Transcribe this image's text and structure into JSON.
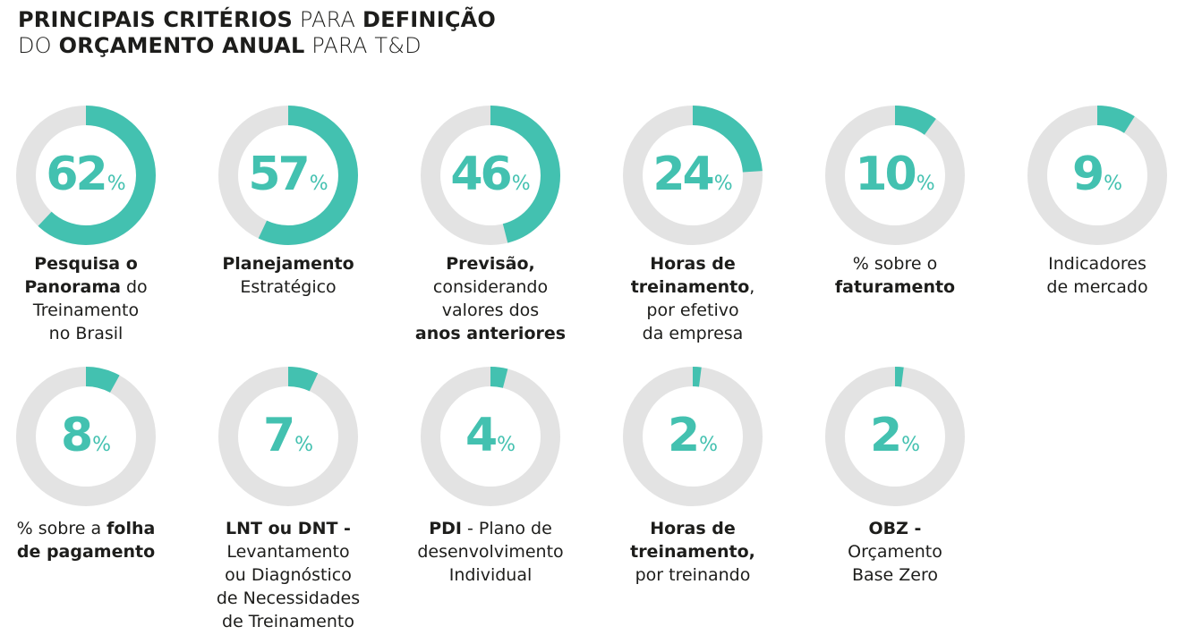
{
  "title": {
    "line1": [
      {
        "text": "PRINCIPAIS CRITÉRIOS",
        "bold": true
      },
      {
        "text": " PARA ",
        "bold": false
      },
      {
        "text": "DEFINIÇÃO",
        "bold": true
      }
    ],
    "line2": [
      {
        "text": "DO ",
        "bold": false
      },
      {
        "text": "ORÇAMENTO ANUAL",
        "bold": true
      },
      {
        "text": " PARA T&D",
        "bold": false
      }
    ]
  },
  "colors": {
    "accent": "#43c1b0",
    "track": "#e3e3e3",
    "text": "#1d1d1b"
  },
  "chart_data": {
    "type": "donut",
    "unit": "%",
    "items": [
      {
        "value": 62,
        "label": [
          [
            {
              "t": "Pesquisa o",
              "b": true
            }
          ],
          [
            {
              "t": "Panorama",
              "b": true
            },
            {
              "t": " do",
              "b": false
            }
          ],
          [
            {
              "t": "Treinamento",
              "b": false
            }
          ],
          [
            {
              "t": "no Brasil",
              "b": false
            }
          ]
        ]
      },
      {
        "value": 57,
        "label": [
          [
            {
              "t": "Planejamento",
              "b": true
            }
          ],
          [
            {
              "t": "Estratégico",
              "b": false
            }
          ]
        ]
      },
      {
        "value": 46,
        "label": [
          [
            {
              "t": "Previsão,",
              "b": true
            }
          ],
          [
            {
              "t": "considerando",
              "b": false
            }
          ],
          [
            {
              "t": "valores dos",
              "b": false
            }
          ],
          [
            {
              "t": "anos anteriores",
              "b": true
            }
          ]
        ]
      },
      {
        "value": 24,
        "label": [
          [
            {
              "t": "Horas de",
              "b": true
            }
          ],
          [
            {
              "t": "treinamento",
              "b": true
            },
            {
              "t": ",",
              "b": false
            }
          ],
          [
            {
              "t": "por efetivo",
              "b": false
            }
          ],
          [
            {
              "t": "da empresa",
              "b": false
            }
          ]
        ]
      },
      {
        "value": 10,
        "label": [
          [
            {
              "t": "% sobre o",
              "b": false
            }
          ],
          [
            {
              "t": "faturamento",
              "b": true
            }
          ]
        ]
      },
      {
        "value": 9,
        "label": [
          [
            {
              "t": "Indicadores",
              "b": false
            }
          ],
          [
            {
              "t": "de mercado",
              "b": false
            }
          ]
        ]
      },
      {
        "value": 8,
        "label": [
          [
            {
              "t": "% sobre a ",
              "b": false
            },
            {
              "t": "folha",
              "b": true
            }
          ],
          [
            {
              "t": "de pagamento",
              "b": true
            }
          ]
        ]
      },
      {
        "value": 7,
        "label": [
          [
            {
              "t": "LNT ou DNT -",
              "b": true
            }
          ],
          [
            {
              "t": "Levantamento",
              "b": false
            }
          ],
          [
            {
              "t": "ou Diagnóstico",
              "b": false
            }
          ],
          [
            {
              "t": "de Necessidades",
              "b": false
            }
          ],
          [
            {
              "t": "de Treinamento",
              "b": false
            }
          ]
        ]
      },
      {
        "value": 4,
        "label": [
          [
            {
              "t": "PDI",
              "b": true
            },
            {
              "t": " - Plano de",
              "b": false
            }
          ],
          [
            {
              "t": "desenvolvimento",
              "b": false
            }
          ],
          [
            {
              "t": "Individual",
              "b": false
            }
          ]
        ]
      },
      {
        "value": 2,
        "label": [
          [
            {
              "t": "Horas de",
              "b": true
            }
          ],
          [
            {
              "t": "treinamento,",
              "b": true
            }
          ],
          [
            {
              "t": "por treinando",
              "b": false
            }
          ]
        ]
      },
      {
        "value": 2,
        "label": [
          [
            {
              "t": "OBZ -",
              "b": true
            }
          ],
          [
            {
              "t": "Orçamento",
              "b": false
            }
          ],
          [
            {
              "t": "Base Zero",
              "b": false
            }
          ]
        ]
      }
    ]
  }
}
